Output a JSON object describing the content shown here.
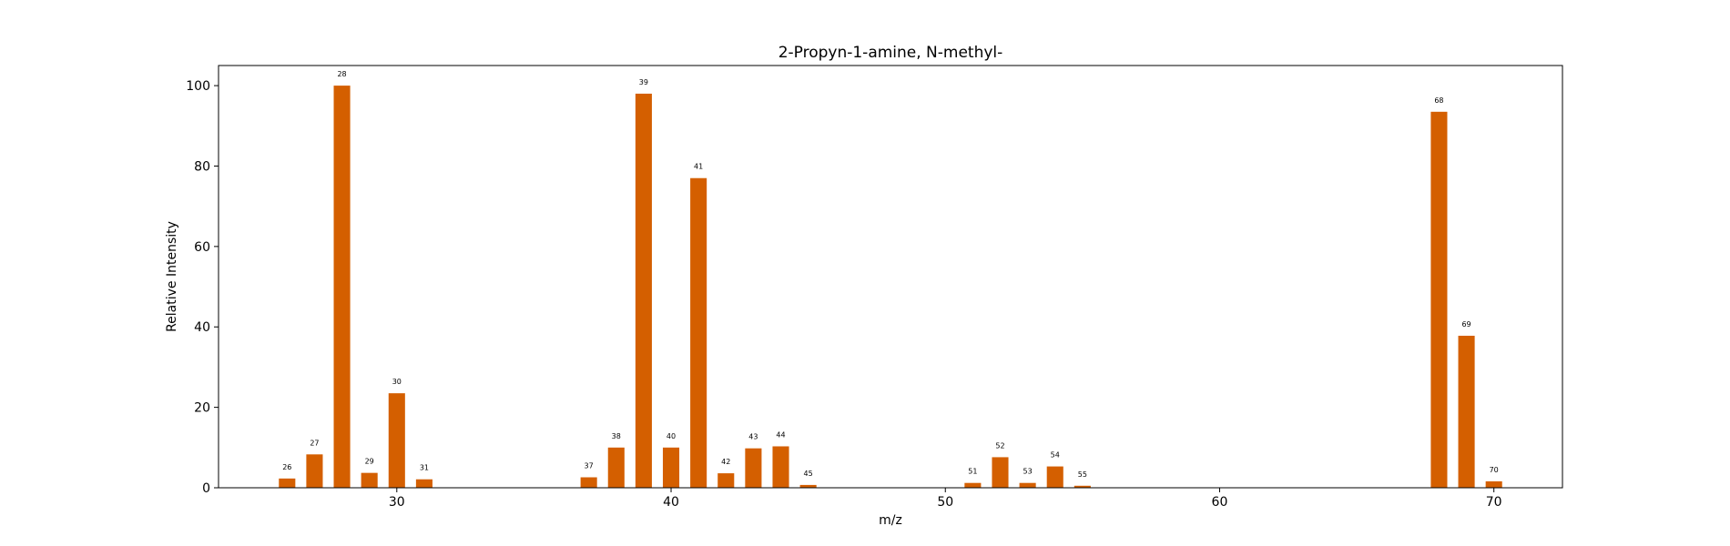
{
  "chart_data": {
    "type": "bar",
    "title": "2-Propyn-1-amine, N-methyl-",
    "xlabel": "m/z",
    "ylabel": "Relative Intensity",
    "xlim": [
      23.5,
      72.5
    ],
    "ylim": [
      0,
      105
    ],
    "xticks": [
      30,
      40,
      50,
      60,
      70
    ],
    "yticks": [
      0,
      20,
      40,
      60,
      80,
      100
    ],
    "grid": false,
    "color": "#d45f00",
    "x": [
      26,
      27,
      28,
      29,
      30,
      31,
      37,
      38,
      39,
      40,
      41,
      42,
      43,
      44,
      45,
      51,
      52,
      53,
      54,
      55,
      68,
      69,
      70
    ],
    "values": [
      2.3,
      8.3,
      100,
      3.7,
      23.5,
      2.1,
      2.6,
      10.0,
      98.0,
      10.0,
      77.0,
      3.6,
      9.8,
      10.3,
      0.7,
      1.2,
      7.6,
      1.2,
      5.3,
      0.5,
      93.5,
      37.8,
      1.6
    ],
    "labels": [
      "26",
      "27",
      "28",
      "29",
      "30",
      "31",
      "37",
      "38",
      "39",
      "40",
      "41",
      "42",
      "43",
      "44",
      "45",
      "51",
      "52",
      "53",
      "54",
      "55",
      "68",
      "69",
      "70"
    ]
  }
}
